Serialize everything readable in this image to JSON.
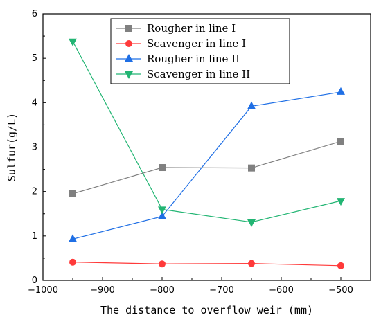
{
  "chart_data": {
    "type": "line",
    "xlabel": "The distance to overflow weir (mm)",
    "ylabel": "Sulfur(g/L)",
    "xlim": [
      -1000,
      -450
    ],
    "ylim": [
      0,
      6
    ],
    "xticks": [
      -1000,
      -900,
      -800,
      -700,
      -600,
      -500
    ],
    "yticks": [
      0,
      1,
      2,
      3,
      4,
      5,
      6
    ],
    "x": [
      -950,
      -800,
      -650,
      -500
    ],
    "grid": false,
    "legend_position": "top-center",
    "series": [
      {
        "name": "Rougher in line I",
        "values": [
          1.95,
          2.54,
          2.53,
          3.13
        ],
        "color": "#808080",
        "marker": "square"
      },
      {
        "name": "Scavenger in line I",
        "values": [
          0.41,
          0.37,
          0.38,
          0.33
        ],
        "color": "#ff3a3a",
        "marker": "circle"
      },
      {
        "name": "Rougher in line II",
        "values": [
          0.93,
          1.44,
          3.92,
          4.24
        ],
        "color": "#1f6fe5",
        "marker": "triangle-up"
      },
      {
        "name": "Scavenger in line II",
        "values": [
          5.38,
          1.6,
          1.31,
          1.79
        ],
        "color": "#22b573",
        "marker": "triangle-down"
      }
    ]
  }
}
